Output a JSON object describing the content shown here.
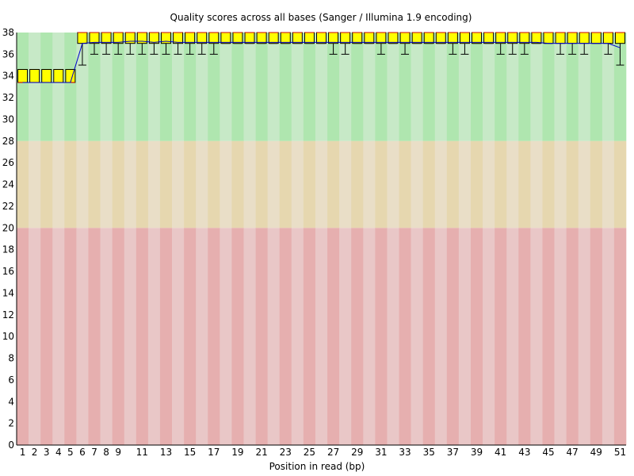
{
  "chart_data": {
    "type": "boxplot",
    "title": "Quality scores across all bases (Sanger / Illumina 1.9 encoding)",
    "xlabel": "Position in read (bp)",
    "ylabel": "",
    "ylim": [
      0,
      38
    ],
    "y_ticks": [
      0,
      2,
      4,
      6,
      8,
      10,
      12,
      14,
      16,
      18,
      20,
      22,
      24,
      26,
      28,
      30,
      32,
      34,
      36,
      38
    ],
    "x_tick_labels": [
      "1",
      "2",
      "3",
      "4",
      "5",
      "6",
      "7",
      "8",
      "9",
      "11",
      "13",
      "15",
      "17",
      "19",
      "21",
      "23",
      "25",
      "27",
      "29",
      "31",
      "33",
      "35",
      "37",
      "39",
      "41",
      "43",
      "45",
      "47",
      "49",
      "51"
    ],
    "bands": [
      {
        "from": 28,
        "to": 38,
        "colors": [
          "#afe6af",
          "#c7e9c7"
        ]
      },
      {
        "from": 20,
        "to": 28,
        "colors": [
          "#e6d7af",
          "#e9dec7"
        ]
      },
      {
        "from": 0,
        "to": 20,
        "colors": [
          "#e6afaf",
          "#e9c7c7"
        ]
      }
    ],
    "colors": {
      "box": "#ffff00",
      "box_border": "#000000",
      "mean_line": "#0000cc",
      "median": "#cc0000",
      "whisker": "#000000"
    },
    "positions": [
      1,
      2,
      3,
      4,
      5,
      6,
      7,
      8,
      9,
      10,
      11,
      12,
      13,
      14,
      15,
      16,
      17,
      18,
      19,
      20,
      21,
      22,
      23,
      24,
      25,
      26,
      27,
      28,
      29,
      30,
      31,
      32,
      33,
      34,
      35,
      36,
      37,
      38,
      39,
      40,
      41,
      42,
      43,
      44,
      45,
      46,
      47,
      48,
      49,
      50,
      51
    ],
    "lower_whisker": [
      33.4,
      33.4,
      33.4,
      33.4,
      33.4,
      35,
      36,
      36,
      36,
      36,
      36,
      36,
      36,
      36,
      36,
      36,
      36,
      37,
      37,
      37,
      37,
      37,
      37,
      37,
      37,
      37,
      36,
      36,
      37,
      37,
      36,
      37,
      36,
      37,
      37,
      37,
      36,
      36,
      37,
      37,
      36,
      36,
      36,
      37,
      37,
      36,
      36,
      36,
      37,
      36,
      35
    ],
    "q1": [
      33.4,
      33.4,
      33.4,
      33.4,
      33.4,
      37,
      37,
      37,
      37,
      37,
      37,
      37,
      37,
      37,
      37,
      37,
      37,
      37,
      37,
      37,
      37,
      37,
      37,
      37,
      37,
      37,
      37,
      37,
      37,
      37,
      37,
      37,
      37,
      37,
      37,
      37,
      37,
      37,
      37,
      37,
      37,
      37,
      37,
      37,
      37,
      37,
      37,
      37,
      37,
      37,
      37
    ],
    "median": [
      33.4,
      33.4,
      33.4,
      33.4,
      33.4,
      38,
      38,
      38,
      38,
      38,
      38,
      38,
      38,
      38,
      38,
      38,
      38,
      38,
      38,
      38,
      38,
      38,
      38,
      38,
      38,
      38,
      38,
      38,
      38,
      38,
      38,
      38,
      38,
      38,
      38,
      38,
      38,
      38,
      38,
      38,
      38,
      38,
      38,
      38,
      38,
      38,
      38,
      38,
      38,
      38,
      38
    ],
    "q3": [
      34.6,
      34.6,
      34.6,
      34.6,
      34.6,
      38,
      38,
      38,
      38,
      38,
      38,
      38,
      38,
      38,
      38,
      38,
      38,
      38,
      38,
      38,
      38,
      38,
      38,
      38,
      38,
      38,
      38,
      38,
      38,
      38,
      38,
      38,
      38,
      38,
      38,
      38,
      38,
      38,
      38,
      38,
      38,
      38,
      38,
      38,
      38,
      38,
      38,
      38,
      38,
      38,
      38
    ],
    "upper_whisker": [
      34.6,
      34.6,
      34.6,
      34.6,
      34.6,
      38,
      38,
      38,
      38,
      38,
      38,
      38,
      38,
      38,
      38,
      38,
      38,
      38,
      38,
      38,
      38,
      38,
      38,
      38,
      38,
      38,
      38,
      38,
      38,
      38,
      38,
      38,
      38,
      38,
      38,
      38,
      38,
      38,
      38,
      38,
      38,
      38,
      38,
      38,
      38,
      38,
      38,
      38,
      38,
      38,
      38
    ],
    "mean": [
      33.4,
      33.4,
      33.4,
      33.4,
      33.4,
      37.0,
      37.1,
      37.1,
      37.1,
      37.2,
      37.2,
      37.1,
      37.2,
      37.1,
      37.1,
      37.1,
      37.1,
      37.1,
      37.1,
      37.1,
      37.1,
      37.1,
      37.1,
      37.1,
      37.1,
      37.1,
      37.1,
      37.1,
      37.1,
      37.1,
      37.1,
      37.1,
      37.1,
      37.1,
      37.1,
      37.1,
      37.1,
      37.1,
      37.1,
      37.1,
      37.1,
      37.1,
      37.1,
      37.1,
      37.0,
      37.0,
      37.0,
      37.0,
      37.0,
      37.0,
      36.6
    ]
  }
}
